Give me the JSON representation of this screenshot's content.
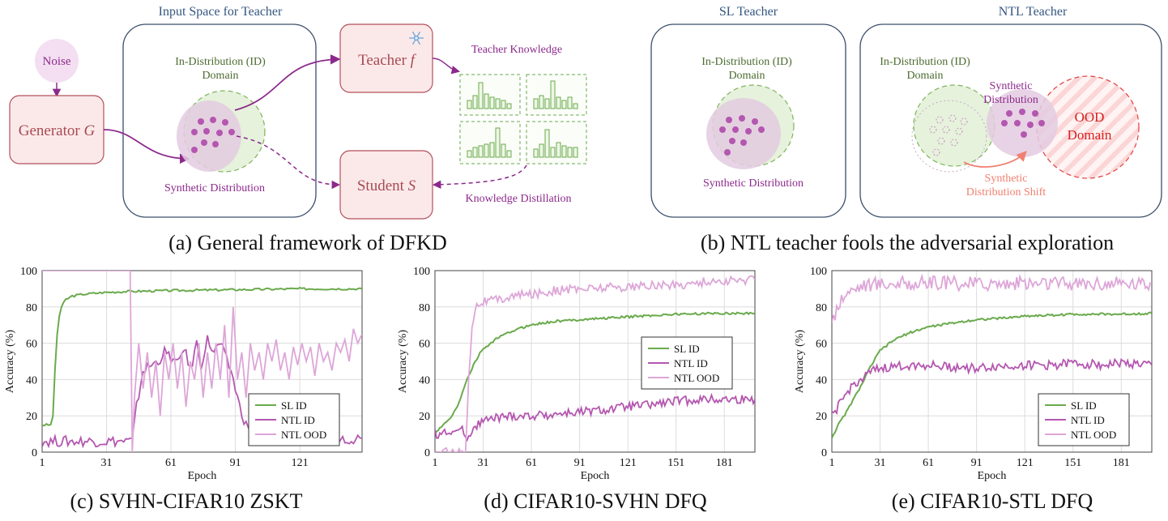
{
  "panel_a": {
    "title": "Input Space for Teacher",
    "noise": "Noise",
    "generator": "Generator ",
    "generator_sym": "G",
    "id_domain_line1": "In-Distribution (ID)",
    "id_domain_line2": "Domain",
    "synthetic": "Synthetic Distribution",
    "teacher": "Teacher ",
    "teacher_sym": "f",
    "student": "Student ",
    "student_sym": "S",
    "teacher_knowledge": "Teacher Knowledge",
    "knowledge_distillation": "Knowledge Distillation",
    "caption": "(a) General framework of DFKD"
  },
  "panel_b": {
    "sl_title": "SL Teacher",
    "ntl_title": "NTL Teacher",
    "id_domain_line1": "In-Distribution (ID)",
    "id_domain_line2": "Domain",
    "synthetic": "Synthetic Distribution",
    "synthetic_line1": "Synthetic",
    "synthetic_line2": "Distribution",
    "ood_line1": "OOD",
    "ood_line2": "Domain",
    "shift_line1": "Synthetic",
    "shift_line2": "Distribution Shift",
    "caption": "(b) NTL teacher fools the adversarial exploration"
  },
  "chart_data": [
    {
      "type": "line",
      "caption": "(c) SVHN-CIFAR10 ZSKT",
      "xlabel": "Epoch",
      "ylabel": "Accuracy (%)",
      "xlim": [
        1,
        150
      ],
      "ylim": [
        0,
        100
      ],
      "xticks": [
        1,
        31,
        61,
        91,
        121
      ],
      "yticks": [
        0,
        20,
        40,
        60,
        80,
        100
      ],
      "legend_position": "bottom-right",
      "series": [
        {
          "name": "SL ID",
          "color": "#6aaa4c",
          "points": [
            [
              1,
              15
            ],
            [
              5,
              15
            ],
            [
              6,
              20
            ],
            [
              7,
              45
            ],
            [
              8,
              65
            ],
            [
              9,
              75
            ],
            [
              10,
              80
            ],
            [
              12,
              84
            ],
            [
              15,
              86
            ],
            [
              20,
              87
            ],
            [
              30,
              88
            ],
            [
              40,
              88.5
            ],
            [
              60,
              89
            ],
            [
              90,
              89.5
            ],
            [
              120,
              90
            ],
            [
              150,
              90
            ]
          ]
        },
        {
          "name": "NTL ID",
          "color": "#b457b0",
          "points": [
            [
              1,
              6
            ],
            [
              43,
              6
            ],
            [
              45,
              25
            ],
            [
              48,
              45
            ],
            [
              52,
              48
            ],
            [
              55,
              50
            ],
            [
              58,
              55
            ],
            [
              61,
              52
            ],
            [
              64,
              48
            ],
            [
              67,
              58
            ],
            [
              70,
              45
            ],
            [
              73,
              60
            ],
            [
              75,
              48
            ],
            [
              78,
              62
            ],
            [
              81,
              55
            ],
            [
              84,
              60
            ],
            [
              87,
              50
            ],
            [
              89,
              45
            ],
            [
              91,
              35
            ],
            [
              93,
              25
            ],
            [
              96,
              15
            ],
            [
              100,
              12
            ],
            [
              105,
              10
            ],
            [
              110,
              9
            ],
            [
              120,
              8
            ],
            [
              150,
              7.5
            ]
          ]
        },
        {
          "name": "NTL OOD",
          "color": "#dda6d8",
          "points": [
            [
              1,
              100
            ],
            [
              42,
              100
            ],
            [
              43,
              0
            ],
            [
              44,
              30
            ],
            [
              46,
              60
            ],
            [
              48,
              35
            ],
            [
              50,
              55
            ],
            [
              52,
              30
            ],
            [
              54,
              50
            ],
            [
              56,
              20
            ],
            [
              58,
              55
            ],
            [
              60,
              40
            ],
            [
              62,
              60
            ],
            [
              64,
              35
            ],
            [
              66,
              55
            ],
            [
              68,
              25
            ],
            [
              70,
              50
            ],
            [
              72,
              40
            ],
            [
              74,
              60
            ],
            [
              76,
              30
            ],
            [
              78,
              55
            ],
            [
              80,
              35
            ],
            [
              82,
              60
            ],
            [
              84,
              40
            ],
            [
              86,
              70
            ],
            [
              88,
              30
            ],
            [
              90,
              80
            ],
            [
              92,
              40
            ],
            [
              94,
              55
            ],
            [
              96,
              30
            ],
            [
              98,
              60
            ],
            [
              100,
              45
            ],
            [
              102,
              55
            ],
            [
              104,
              40
            ],
            [
              106,
              60
            ],
            [
              108,
              50
            ],
            [
              110,
              62
            ],
            [
              112,
              45
            ],
            [
              114,
              55
            ],
            [
              116,
              40
            ],
            [
              118,
              58
            ],
            [
              120,
              48
            ],
            [
              122,
              60
            ],
            [
              124,
              50
            ],
            [
              126,
              58
            ],
            [
              128,
              42
            ],
            [
              130,
              60
            ],
            [
              132,
              50
            ],
            [
              134,
              55
            ],
            [
              136,
              45
            ],
            [
              138,
              60
            ],
            [
              140,
              55
            ],
            [
              142,
              62
            ],
            [
              144,
              50
            ],
            [
              146,
              68
            ],
            [
              148,
              60
            ],
            [
              150,
              65
            ]
          ]
        }
      ]
    },
    {
      "type": "line",
      "caption": "(d) CIFAR10-SVHN DFQ",
      "xlabel": "Epoch",
      "ylabel": "Accuracy (%)",
      "xlim": [
        1,
        200
      ],
      "ylim": [
        0,
        100
      ],
      "xticks": [
        1,
        31,
        61,
        91,
        121,
        151,
        181
      ],
      "yticks": [
        0,
        20,
        40,
        60,
        80,
        100
      ],
      "legend_position": "center-right",
      "series": [
        {
          "name": "SL ID",
          "color": "#6aaa4c",
          "points": [
            [
              1,
              10
            ],
            [
              5,
              14
            ],
            [
              10,
              18
            ],
            [
              15,
              25
            ],
            [
              20,
              38
            ],
            [
              25,
              48
            ],
            [
              30,
              56
            ],
            [
              40,
              63
            ],
            [
              50,
              67
            ],
            [
              60,
              70
            ],
            [
              75,
              72
            ],
            [
              91,
              73
            ],
            [
              110,
              74
            ],
            [
              130,
              75
            ],
            [
              151,
              76
            ],
            [
              181,
              76.5
            ],
            [
              200,
              76.5
            ]
          ]
        },
        {
          "name": "NTL ID",
          "color": "#b457b0",
          "points": [
            [
              1,
              10
            ],
            [
              10,
              11
            ],
            [
              18,
              12
            ],
            [
              22,
              8
            ],
            [
              25,
              14
            ],
            [
              30,
              17
            ],
            [
              40,
              19
            ],
            [
              50,
              20
            ],
            [
              61,
              20
            ],
            [
              75,
              21
            ],
            [
              91,
              22
            ],
            [
              105,
              23
            ],
            [
              121,
              25
            ],
            [
              135,
              26
            ],
            [
              151,
              28
            ],
            [
              165,
              29
            ],
            [
              181,
              29
            ],
            [
              200,
              29
            ]
          ]
        },
        {
          "name": "NTL OOD",
          "color": "#dda6d8",
          "points": [
            [
              1,
              0
            ],
            [
              15,
              0
            ],
            [
              20,
              1
            ],
            [
              22,
              40
            ],
            [
              24,
              70
            ],
            [
              26,
              80
            ],
            [
              30,
              83
            ],
            [
              40,
              84
            ],
            [
              50,
              86
            ],
            [
              61,
              87
            ],
            [
              75,
              89
            ],
            [
              91,
              90
            ],
            [
              110,
              91
            ],
            [
              121,
              91
            ],
            [
              140,
              92
            ],
            [
              151,
              92
            ],
            [
              170,
              94
            ],
            [
              181,
              94
            ],
            [
              200,
              95
            ]
          ]
        }
      ]
    },
    {
      "type": "line",
      "caption": "(e) CIFAR10-STL DFQ",
      "xlabel": "Epoch",
      "ylabel": "Accuracy (%)",
      "xlim": [
        1,
        200
      ],
      "ylim": [
        0,
        100
      ],
      "xticks": [
        1,
        31,
        61,
        91,
        121,
        151,
        181
      ],
      "yticks": [
        0,
        20,
        40,
        60,
        80,
        100
      ],
      "legend_position": "bottom-right",
      "series": [
        {
          "name": "SL ID",
          "color": "#6aaa4c",
          "points": [
            [
              1,
              8
            ],
            [
              5,
              15
            ],
            [
              10,
              22
            ],
            [
              15,
              30
            ],
            [
              20,
              38
            ],
            [
              25,
              47
            ],
            [
              31,
              56
            ],
            [
              40,
              62
            ],
            [
              50,
              66
            ],
            [
              61,
              69
            ],
            [
              75,
              71
            ],
            [
              91,
              73
            ],
            [
              110,
              74
            ],
            [
              121,
              75
            ],
            [
              140,
              75.5
            ],
            [
              151,
              76
            ],
            [
              181,
              76
            ],
            [
              200,
              76.5
            ]
          ]
        },
        {
          "name": "NTL ID",
          "color": "#b457b0",
          "points": [
            [
              1,
              20
            ],
            [
              5,
              25
            ],
            [
              10,
              32
            ],
            [
              15,
              38
            ],
            [
              20,
              40
            ],
            [
              25,
              44
            ],
            [
              31,
              46
            ],
            [
              40,
              47
            ],
            [
              50,
              48
            ],
            [
              61,
              48
            ],
            [
              75,
              47
            ],
            [
              91,
              46
            ],
            [
              100,
              47
            ],
            [
              121,
              48
            ],
            [
              140,
              48
            ],
            [
              151,
              49
            ],
            [
              170,
              48
            ],
            [
              181,
              49
            ],
            [
              200,
              48
            ]
          ]
        },
        {
          "name": "NTL OOD",
          "color": "#dda6d8",
          "points": [
            [
              1,
              70
            ],
            [
              5,
              82
            ],
            [
              10,
              88
            ],
            [
              15,
              90
            ],
            [
              20,
              92
            ],
            [
              31,
              93
            ],
            [
              50,
              93
            ],
            [
              61,
              93
            ],
            [
              91,
              93
            ],
            [
              121,
              93
            ],
            [
              151,
              93
            ],
            [
              181,
              93
            ],
            [
              200,
              93
            ]
          ]
        }
      ]
    }
  ]
}
